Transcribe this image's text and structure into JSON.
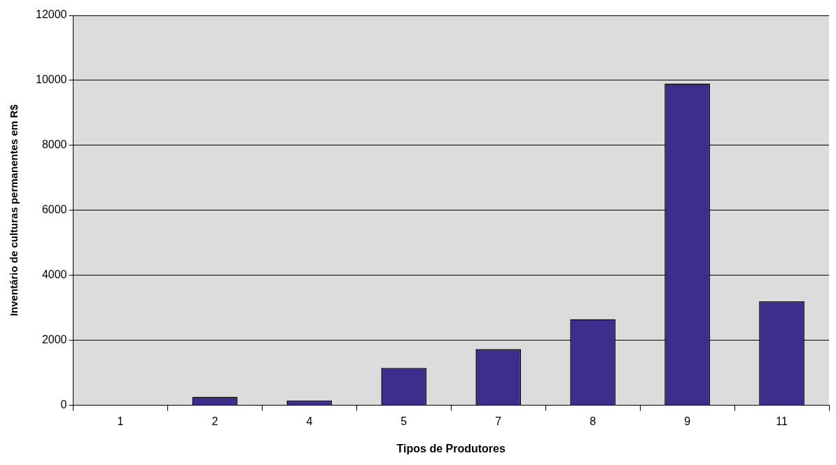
{
  "chart_data": {
    "type": "bar",
    "xlabel": "Tipos de Produtores",
    "ylabel": "Inventário de culturas permanentes em R$",
    "categories": [
      "1",
      "2",
      "4",
      "5",
      "7",
      "8",
      "9",
      "11"
    ],
    "values": [
      0,
      260,
      150,
      1150,
      1730,
      2650,
      9900,
      3200
    ],
    "color": "#3b2e8c",
    "ylim": [
      0,
      12000
    ],
    "yticks": [
      0,
      2000,
      4000,
      6000,
      8000,
      10000,
      12000
    ],
    "grid": "y",
    "legend": false
  }
}
